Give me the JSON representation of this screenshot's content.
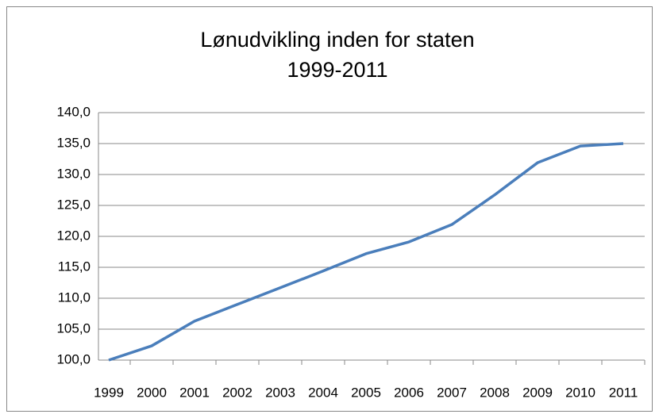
{
  "chart_data": {
    "type": "line",
    "title": "Lønudvikling inden for staten",
    "subtitle": "1999-2011",
    "categories": [
      "1999",
      "2000",
      "2001",
      "2002",
      "2003",
      "2004",
      "2005",
      "2006",
      "2007",
      "2008",
      "2009",
      "2010",
      "2011"
    ],
    "series": [
      {
        "name": "Lønudvikling",
        "color": "#4a7ebb",
        "values": [
          100.0,
          102.3,
          106.3,
          109.0,
          111.7,
          114.4,
          117.2,
          119.1,
          121.9,
          126.7,
          131.9,
          134.6,
          135.0
        ]
      }
    ],
    "ylim": [
      100,
      140
    ],
    "yticks": [
      {
        "value": 100,
        "label": "100,0"
      },
      {
        "value": 105,
        "label": "105,0"
      },
      {
        "value": 110,
        "label": "110,0"
      },
      {
        "value": 115,
        "label": "115,0"
      },
      {
        "value": 120,
        "label": "120,0"
      },
      {
        "value": 125,
        "label": "125,0"
      },
      {
        "value": 130,
        "label": "130,0"
      },
      {
        "value": 135,
        "label": "135,0"
      },
      {
        "value": 140,
        "label": "140,0"
      }
    ],
    "grid": true
  }
}
